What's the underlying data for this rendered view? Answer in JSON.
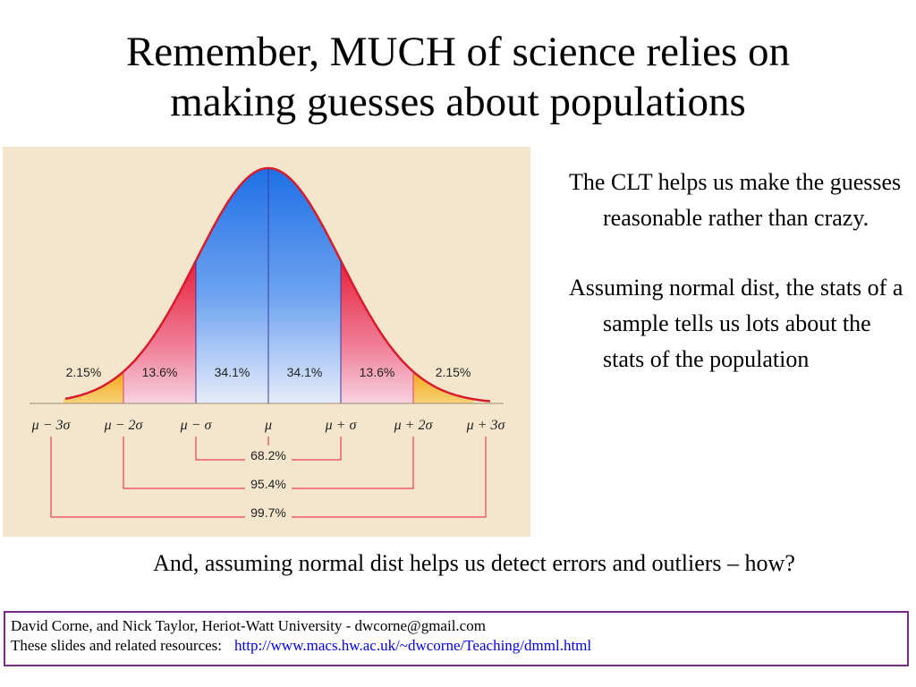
{
  "title": {
    "line1": "Remember, MUCH of science relies on",
    "line2": "making guesses about populations"
  },
  "figure": {
    "region_labels": [
      "2.15%",
      "13.6%",
      "34.1%",
      "34.1%",
      "13.6%",
      "2.15%"
    ],
    "axis_ticks": [
      "μ − 3σ",
      "μ − 2σ",
      "μ − σ",
      "μ",
      "μ + σ",
      "μ + 2σ",
      "μ + 3σ"
    ],
    "range_labels": [
      "68.2%",
      "95.4%",
      "99.7%"
    ],
    "colors": {
      "center": "#1f6fe6",
      "tail1": "#e8203a",
      "tail2": "#f2a818",
      "curve": "#d81c2c",
      "background": "#f3e6cc"
    }
  },
  "bullets": [
    "The CLT helps us make the guesses reasonable rather than crazy.",
    "Assuming normal dist, the stats of a sample tells us lots about the stats of the population"
  ],
  "bottom_note": "And, assuming normal dist helps us detect errors and outliers – how?",
  "footer": {
    "line1": "David Corne, and Nick Taylor,  Heriot-Watt University  -  dwcorne@gmail.com",
    "line2_label": "These slides and related resources:",
    "link": "http://www.macs.hw.ac.uk/~dwcorne/Teaching/dmml.html"
  }
}
